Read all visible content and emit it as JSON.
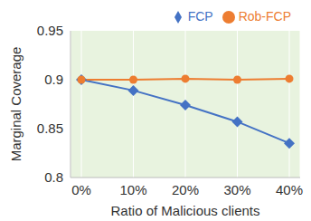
{
  "chart_data": {
    "type": "line",
    "x_label": "Ratio of Malicious clients",
    "y_label": "Marginal Coverage",
    "categories": [
      "0%",
      "10%",
      "20%",
      "30%",
      "40%"
    ],
    "series": [
      {
        "name": "FCP",
        "color": "#4472c4",
        "marker": "diamond",
        "values": [
          0.9,
          0.889,
          0.874,
          0.857,
          0.835
        ]
      },
      {
        "name": "Rob-FCP",
        "color": "#ed7d31",
        "marker": "circle",
        "values": [
          0.9,
          0.9,
          0.901,
          0.9,
          0.901
        ]
      }
    ],
    "ylim": [
      0.8,
      0.95
    ],
    "yticks": [
      0.8,
      0.85,
      0.9,
      0.95
    ],
    "grid": true,
    "legend": "top"
  }
}
